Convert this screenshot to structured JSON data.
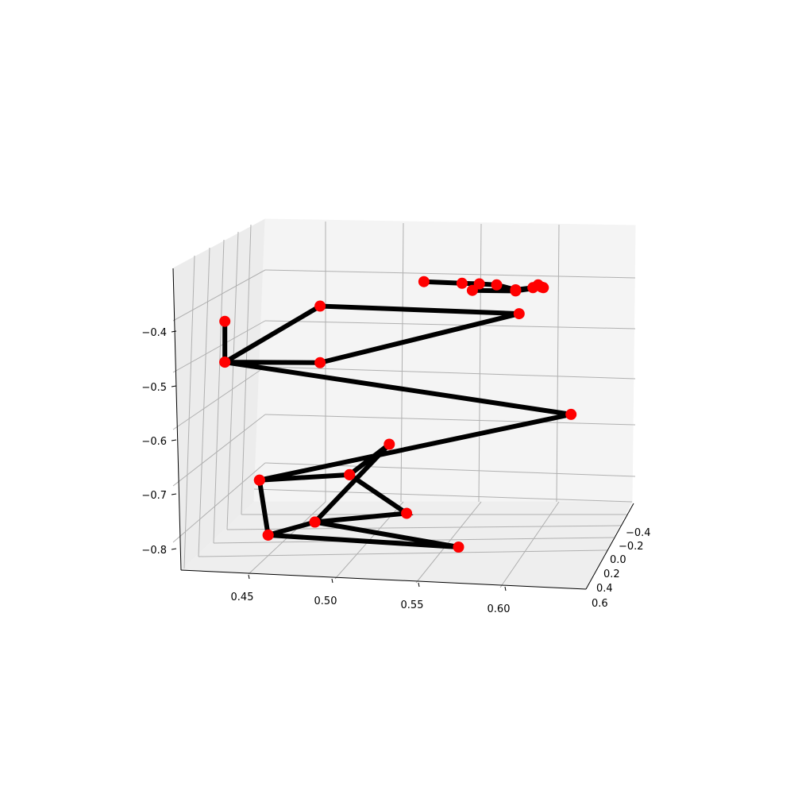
{
  "chart_data": {
    "type": "line3d",
    "title": "",
    "xlabel": "",
    "ylabel": "",
    "zlabel": "",
    "colors": {
      "line": "#000000",
      "marker": "#ff0000",
      "pane": "#f2f2f2",
      "grid": "#b0b0b0"
    },
    "grid": true,
    "x_ticks": [
      "0.45",
      "0.50",
      "0.55",
      "0.60"
    ],
    "y_ticks": [
      "−0.4",
      "−0.2",
      "0.0",
      "0.2",
      "0.4",
      "0.6"
    ],
    "z_ticks": [
      "−0.4",
      "−0.5",
      "−0.6",
      "−0.7",
      "−0.8"
    ],
    "points_xz": [
      {
        "x": 0.465,
        "z": -0.778
      },
      {
        "x": 0.492,
        "z": -0.754
      },
      {
        "x": 0.575,
        "z": -0.8
      },
      {
        "x": 0.465,
        "z": -0.778
      },
      {
        "x": 0.46,
        "z": -0.677
      },
      {
        "x": 0.512,
        "z": -0.667
      },
      {
        "x": 0.545,
        "z": -0.738
      },
      {
        "x": 0.492,
        "z": -0.754
      },
      {
        "x": 0.535,
        "z": -0.611
      },
      {
        "x": 0.512,
        "z": -0.667
      },
      {
        "x": 0.46,
        "z": -0.677
      },
      {
        "x": 0.64,
        "z": -0.556
      },
      {
        "x": 0.44,
        "z": -0.46
      },
      {
        "x": 0.495,
        "z": -0.461
      },
      {
        "x": 0.61,
        "z": -0.371
      },
      {
        "x": 0.495,
        "z": -0.357
      },
      {
        "x": 0.44,
        "z": -0.46
      },
      {
        "x": 0.44,
        "z": -0.385
      }
    ],
    "head_points_xz": [
      {
        "x": 0.555,
        "z": -0.312
      },
      {
        "x": 0.577,
        "z": -0.315
      },
      {
        "x": 0.587,
        "z": -0.316
      },
      {
        "x": 0.597,
        "z": -0.318
      },
      {
        "x": 0.608,
        "z": -0.327
      },
      {
        "x": 0.618,
        "z": -0.323
      },
      {
        "x": 0.621,
        "z": -0.318
      },
      {
        "x": 0.624,
        "z": -0.323
      },
      {
        "x": 0.623,
        "z": -0.322
      },
      {
        "x": 0.608,
        "z": -0.329
      },
      {
        "x": 0.583,
        "z": -0.328
      }
    ]
  }
}
